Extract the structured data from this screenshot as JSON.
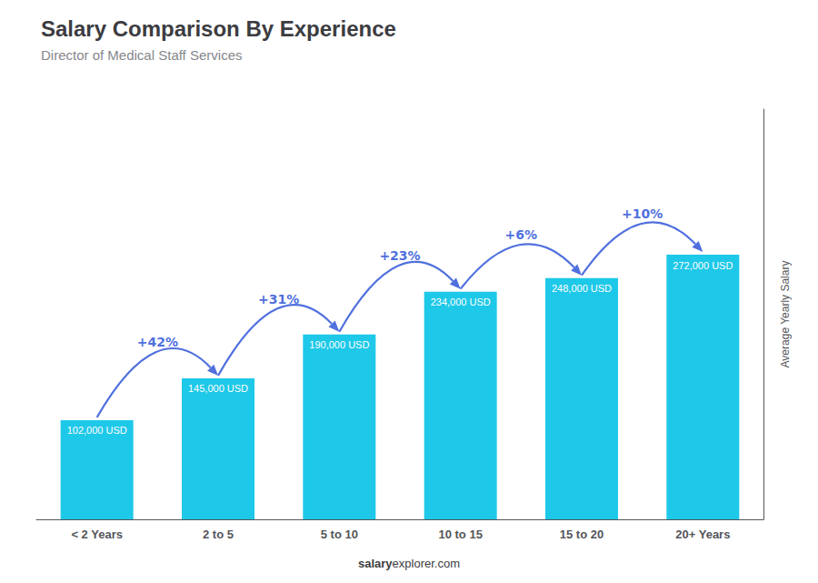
{
  "chart_data": {
    "type": "bar",
    "title": "Salary Comparison By Experience",
    "subtitle": "Director of Medical Staff Services",
    "categories": [
      "< 2 Years",
      "2 to 5",
      "5 to 10",
      "10 to 15",
      "15 to 20",
      "20+ Years"
    ],
    "values": [
      102000,
      145000,
      190000,
      234000,
      248000,
      272000
    ],
    "value_labels": [
      "102,000 USD",
      "145,000 USD",
      "190,000 USD",
      "234,000 USD",
      "248,000 USD",
      "272,000 USD"
    ],
    "data_labels": true,
    "color": "#1ec8e8",
    "ylabel": "Average Yearly Salary",
    "ylim": [
      0,
      421600
    ],
    "yticks": [],
    "tick_labels": "x",
    "grid": false,
    "annotations": [
      "+42%",
      "+31%",
      "+23%",
      "+6%",
      "+10%"
    ],
    "watermark": [
      "salary",
      "explorer.com"
    ]
  }
}
